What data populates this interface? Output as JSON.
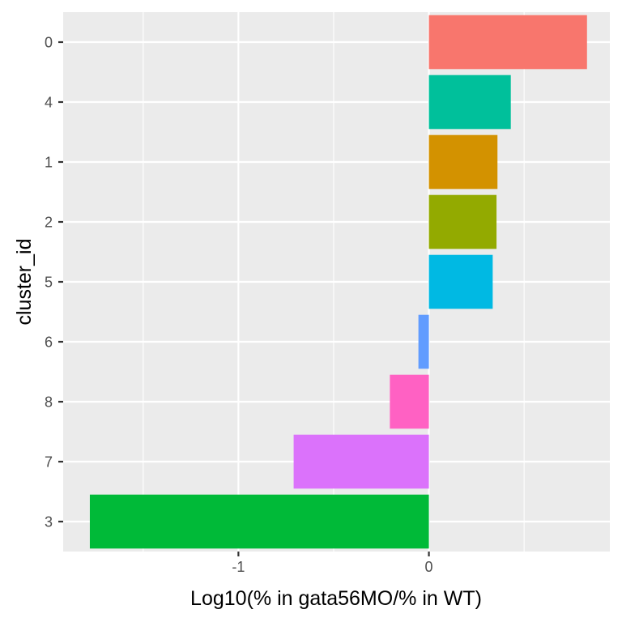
{
  "chart_data": {
    "type": "bar",
    "orientation": "horizontal",
    "xlabel": "Log10(% in gata56MO/% in WT)",
    "ylabel": "cluster_id",
    "categories": [
      "0",
      "4",
      "1",
      "2",
      "5",
      "6",
      "8",
      "7",
      "3"
    ],
    "values": [
      0.83,
      0.43,
      0.36,
      0.355,
      0.335,
      -0.055,
      -0.205,
      -0.71,
      -1.78
    ],
    "colors": [
      "#F8766D",
      "#00C09B",
      "#D39200",
      "#93AA00",
      "#00B9E3",
      "#619CFF",
      "#FF61C3",
      "#DB72FB",
      "#00BA38"
    ],
    "xlim": [
      -1.92,
      0.95
    ],
    "xticks": [
      -1,
      0
    ],
    "xtick_labels": [
      "-1",
      "0"
    ],
    "grid": true,
    "panel_background": "#EBEBEB",
    "grid_color": "#FFFFFF",
    "legend": "none"
  }
}
